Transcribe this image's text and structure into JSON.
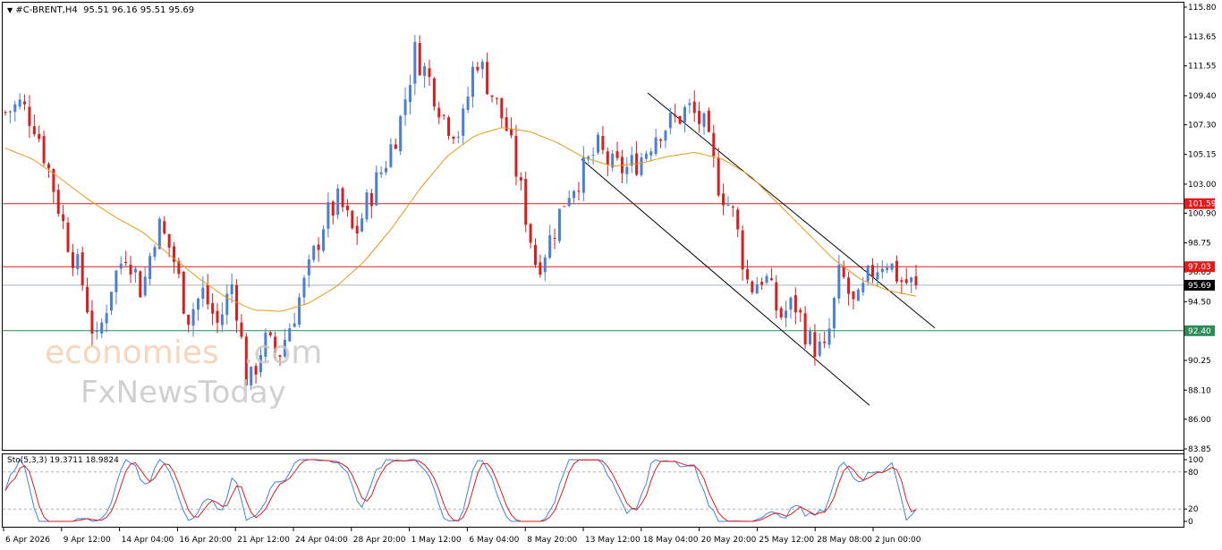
{
  "header": {
    "symbol": "#C-BRENT,H4",
    "ohlc": "95.51 96.16 95.51 95.69"
  },
  "stochastic": {
    "label": "Sto(5,3,3) 19.3711 18.9824",
    "levels": [
      100,
      80,
      20,
      0
    ]
  },
  "watermark": {
    "line1": "economies.com",
    "line2": "FxNewsToday"
  },
  "price_axis": {
    "ticks": [
      "115.80",
      "113.65",
      "111.55",
      "109.40",
      "107.30",
      "105.15",
      "103.00",
      "100.90",
      "98.75",
      "96.65",
      "94.50",
      "92.25",
      "90.25",
      "88.10",
      "86.00",
      "83.85"
    ],
    "markers": [
      {
        "value": "101.59",
        "color": "#e31a1a"
      },
      {
        "value": "97.03",
        "color": "#e31a1a"
      },
      {
        "value": "95.69",
        "color": "#000000"
      },
      {
        "value": "92.40",
        "color": "#2e8b57"
      }
    ]
  },
  "time_axis": {
    "labels": [
      "6 Apr 2026",
      "9 Apr 12:00",
      "14 Apr 04:00",
      "16 Apr 20:00",
      "21 Apr 12:00",
      "24 Apr 04:00",
      "28 Apr 20:00",
      "1 May 12:00",
      "6 May 04:00",
      "8 May 20:00",
      "13 May 12:00",
      "18 May 04:00",
      "20 May 20:00",
      "25 May 12:00",
      "28 May 08:00",
      "2 Jun 00:00"
    ]
  },
  "chart_data": {
    "type": "candlestick",
    "title": "#C-BRENT,H4",
    "ylim": [
      83.85,
      115.8
    ],
    "bull_color": "#4a7fd4",
    "bear_color": "#d81e1e",
    "ma_color": "#e59a1a",
    "horizontal_levels": [
      {
        "value": 101.59,
        "color": "#e31a1a"
      },
      {
        "value": 97.03,
        "color": "#e31a1a"
      },
      {
        "value": 95.69,
        "color": "#a9b3bd"
      },
      {
        "value": 92.4,
        "color": "#2e8b57"
      }
    ],
    "channel_lines": [
      {
        "from": [
          109.6,
          "18 May"
        ],
        "to": [
          92.4,
          "2 Jun end"
        ]
      },
      {
        "from": [
          104.8,
          "13 May"
        ],
        "to": [
          87.0,
          "30 May"
        ]
      }
    ],
    "price_path": [
      108.2,
      108.8,
      107.3,
      103.5,
      99.3,
      96.2,
      91.3,
      95.8,
      98.3,
      95.2,
      100.2,
      98.0,
      93.4,
      95.2,
      92.8,
      96.0,
      88.1,
      91.7,
      90.6,
      93.6,
      96.7,
      100.4,
      101.8,
      99.2,
      102.1,
      104.5,
      107.5,
      112.6,
      110.4,
      107.6,
      106.7,
      112.4,
      109.7,
      107.1,
      102.3,
      97.0,
      99.3,
      102.4,
      103.8,
      105.6,
      104.2,
      104.1,
      105.1,
      107.0,
      107.5,
      108.5,
      107.2,
      103.0,
      100.7,
      95.4,
      96.5,
      93.4,
      94.4,
      91.6,
      90.7,
      96.7,
      93.8,
      96.6,
      97.7,
      96.0,
      95.69
    ],
    "ma_path": [
      105.6,
      104.8,
      103.4,
      101.9,
      100.6,
      99.5,
      97.8,
      96.2,
      94.8,
      93.9,
      93.8,
      94.4,
      95.6,
      97.4,
      99.8,
      102.6,
      105.0,
      106.5,
      107.1,
      106.8,
      106.0,
      104.9,
      104.3,
      104.5,
      105.0,
      105.3,
      104.8,
      103.6,
      101.6,
      99.6,
      97.6,
      96.1,
      95.3,
      94.9
    ],
    "stochastic": {
      "name": "Sto(5,3,3)",
      "main": 19.3711,
      "signal": 18.9824,
      "levels": [
        20,
        80
      ],
      "main_color": "#4a7fd4",
      "signal_color": "#d81e1e"
    }
  }
}
